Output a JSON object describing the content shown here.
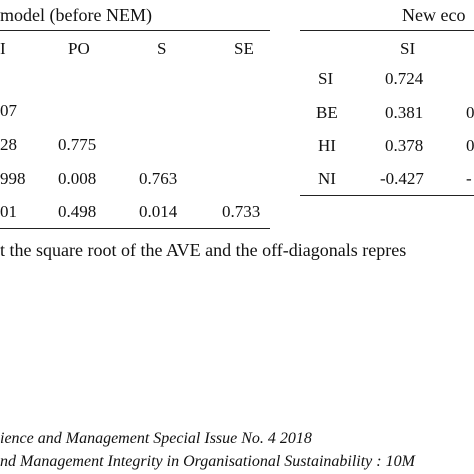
{
  "left_table": {
    "title": "model (before NEM)",
    "headers": [
      "I",
      "PO",
      "S",
      "SE"
    ],
    "rows": [
      [
        "07",
        "",
        "",
        ""
      ],
      [
        "28",
        "0.775",
        "",
        ""
      ],
      [
        "998",
        "0.008",
        "0.763",
        ""
      ],
      [
        "01",
        "0.498",
        "0.014",
        "0.733"
      ]
    ]
  },
  "right_table": {
    "title": "New eco",
    "header": "SI",
    "rows": [
      {
        "label": "SI",
        "value": "0.724",
        "extra": ""
      },
      {
        "label": "BE",
        "value": "0.381",
        "extra": "0"
      },
      {
        "label": "HI",
        "value": "0.378",
        "extra": "0"
      },
      {
        "label": "NI",
        "value": "-0.427",
        "extra": "-"
      }
    ]
  },
  "note": "t the square root of the AVE and the off-diagonals repres",
  "footer": {
    "line1": "ience and Management Special Issue No. 4 2018",
    "line2": "nd Management Integrity in Organisational Sustainability  : 10M"
  }
}
